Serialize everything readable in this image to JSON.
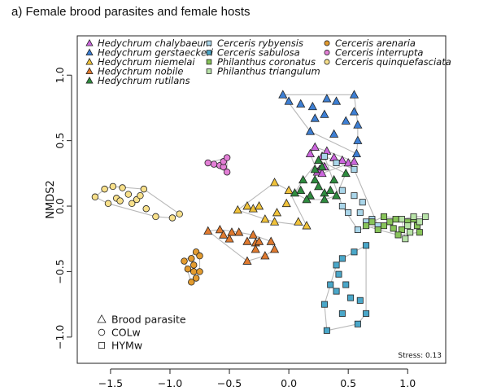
{
  "title": "a) Female brood parasites and female hosts",
  "chart_data": {
    "type": "scatter",
    "xlabel": "",
    "ylabel": "NMDS2",
    "xlim": [
      -1.78,
      1.32
    ],
    "ylim": [
      -1.2,
      1.3
    ],
    "xticks": [
      -1.5,
      -1.0,
      -0.5,
      0.0,
      0.5,
      1.0
    ],
    "xtick_labels": [
      "−1.5",
      "−1.0",
      "−0.5",
      "0.0",
      "0.5",
      "1.0"
    ],
    "yticks": [
      -1.0,
      -0.5,
      0.0,
      0.5,
      1.0
    ],
    "ytick_labels": [
      "−1.0",
      "−0.5",
      "0.0",
      "0.5",
      "1.0"
    ],
    "stress_label": "Stress: 0.13",
    "shape_legend": [
      {
        "shape": "triangle",
        "label": "Brood parasite"
      },
      {
        "shape": "circle",
        "label": "COLw"
      },
      {
        "shape": "square",
        "label": "HYMw"
      }
    ],
    "series": [
      {
        "name": "Hedychrum chalybaeum",
        "shape": "triangle",
        "color": "#cc66dd",
        "points": [
          [
            0.18,
            0.4
          ],
          [
            0.22,
            0.45
          ],
          [
            0.28,
            0.38
          ],
          [
            0.32,
            0.42
          ],
          [
            0.38,
            0.37
          ],
          [
            0.45,
            0.35
          ],
          [
            0.5,
            0.33
          ],
          [
            0.55,
            0.34
          ],
          [
            0.24,
            0.26
          ],
          [
            0.26,
            0.28
          ],
          [
            0.28,
            0.25
          ],
          [
            0.3,
            0.3
          ]
        ]
      },
      {
        "name": "Hedychrum gerstaeckeri",
        "shape": "triangle",
        "color": "#3d7fd4",
        "points": [
          [
            -0.05,
            0.85
          ],
          [
            0.0,
            0.8
          ],
          [
            0.1,
            0.78
          ],
          [
            0.2,
            0.76
          ],
          [
            0.32,
            0.82
          ],
          [
            0.4,
            0.8
          ],
          [
            0.55,
            0.72
          ],
          [
            0.55,
            0.85
          ],
          [
            0.22,
            0.67
          ],
          [
            0.3,
            0.7
          ],
          [
            0.48,
            0.65
          ],
          [
            0.58,
            0.62
          ],
          [
            0.18,
            0.57
          ],
          [
            0.38,
            0.55
          ],
          [
            0.58,
            0.5
          ],
          [
            0.57,
            0.4
          ]
        ]
      },
      {
        "name": "Hedychrum niemelai",
        "shape": "triangle",
        "color": "#f0c23a",
        "points": [
          [
            -0.43,
            -0.03
          ],
          [
            -0.35,
            0.0
          ],
          [
            -0.3,
            -0.02
          ],
          [
            -0.25,
            0.0
          ],
          [
            -0.1,
            -0.05
          ],
          [
            -0.12,
            -0.12
          ],
          [
            -0.02,
            0.02
          ],
          [
            -0.12,
            0.18
          ],
          [
            0.0,
            0.12
          ],
          [
            0.08,
            -0.12
          ],
          [
            0.15,
            -0.15
          ],
          [
            -0.2,
            -0.1
          ]
        ]
      },
      {
        "name": "Hedychrum nobile",
        "shape": "triangle",
        "color": "#e07a2f",
        "points": [
          [
            -0.68,
            -0.19
          ],
          [
            -0.58,
            -0.18
          ],
          [
            -0.55,
            -0.22
          ],
          [
            -0.5,
            -0.25
          ],
          [
            -0.48,
            -0.2
          ],
          [
            -0.42,
            -0.2
          ],
          [
            -0.35,
            -0.27
          ],
          [
            -0.3,
            -0.22
          ],
          [
            -0.28,
            -0.28
          ],
          [
            -0.28,
            -0.33
          ],
          [
            -0.25,
            -0.27
          ],
          [
            -0.15,
            -0.27
          ],
          [
            -0.12,
            -0.33
          ],
          [
            -0.2,
            -0.38
          ],
          [
            -0.35,
            -0.42
          ]
        ]
      },
      {
        "name": "Hedychrum rutilans",
        "shape": "triangle",
        "color": "#2e8b3e",
        "points": [
          [
            0.1,
            0.12
          ],
          [
            0.18,
            0.08
          ],
          [
            0.25,
            0.15
          ],
          [
            0.3,
            0.1
          ],
          [
            0.35,
            0.12
          ],
          [
            0.4,
            0.08
          ],
          [
            0.05,
            0.1
          ],
          [
            0.12,
            0.2
          ],
          [
            0.22,
            0.2
          ],
          [
            0.38,
            0.2
          ],
          [
            0.48,
            0.25
          ],
          [
            0.22,
            0.28
          ],
          [
            0.25,
            0.35
          ],
          [
            0.28,
            0.3
          ],
          [
            0.15,
            0.05
          ],
          [
            0.3,
            0.05
          ]
        ]
      },
      {
        "name": "Cerceris rybyensis",
        "shape": "square",
        "color": "#aad6ea",
        "points": [
          [
            0.3,
            0.38
          ],
          [
            0.4,
            0.33
          ],
          [
            0.55,
            0.28
          ],
          [
            0.45,
            0.12
          ],
          [
            0.55,
            0.08
          ],
          [
            0.45,
            0.0
          ],
          [
            0.5,
            -0.05
          ],
          [
            0.6,
            -0.05
          ],
          [
            0.65,
            -0.12
          ],
          [
            0.7,
            -0.1
          ],
          [
            0.58,
            -0.18
          ],
          [
            0.75,
            -0.15
          ],
          [
            0.62,
            0.03
          ]
        ]
      },
      {
        "name": "Cerceris sabulosa",
        "shape": "square",
        "color": "#4aa7c9",
        "points": [
          [
            0.35,
            -0.6
          ],
          [
            0.4,
            -0.65
          ],
          [
            0.42,
            -0.52
          ],
          [
            0.48,
            -0.6
          ],
          [
            0.52,
            -0.7
          ],
          [
            0.6,
            -0.72
          ],
          [
            0.65,
            -0.82
          ],
          [
            0.45,
            -0.82
          ],
          [
            0.3,
            -0.75
          ],
          [
            0.58,
            -0.9
          ],
          [
            0.32,
            -0.95
          ],
          [
            0.45,
            -0.4
          ],
          [
            0.4,
            -0.45
          ],
          [
            0.55,
            -0.35
          ],
          [
            0.65,
            -0.3
          ]
        ]
      },
      {
        "name": "Philanthus coronatus",
        "shape": "square",
        "color": "#88c45a",
        "points": [
          [
            0.65,
            -0.15
          ],
          [
            0.7,
            -0.12
          ],
          [
            0.75,
            -0.18
          ],
          [
            0.8,
            -0.15
          ],
          [
            0.85,
            -0.12
          ],
          [
            0.9,
            -0.1
          ],
          [
            0.95,
            -0.18
          ],
          [
            1.0,
            -0.12
          ],
          [
            1.05,
            -0.1
          ],
          [
            1.08,
            -0.15
          ],
          [
            1.1,
            -0.2
          ],
          [
            0.92,
            -0.22
          ],
          [
            0.88,
            -0.17
          ],
          [
            0.8,
            -0.08
          ]
        ]
      },
      {
        "name": "Philanthus triangulum",
        "shape": "square",
        "color": "#b8e3a8",
        "points": [
          [
            0.95,
            -0.1
          ],
          [
            1.0,
            -0.15
          ],
          [
            1.02,
            -0.2
          ],
          [
            1.05,
            -0.08
          ],
          [
            1.1,
            -0.12
          ],
          [
            1.15,
            -0.08
          ],
          [
            0.98,
            -0.25
          ]
        ]
      },
      {
        "name": "Cerceris arenaria",
        "shape": "circle",
        "color": "#e39b2e",
        "points": [
          [
            -0.88,
            -0.42
          ],
          [
            -0.82,
            -0.4
          ],
          [
            -0.8,
            -0.45
          ],
          [
            -0.85,
            -0.48
          ],
          [
            -0.8,
            -0.5
          ],
          [
            -0.75,
            -0.5
          ],
          [
            -0.78,
            -0.55
          ],
          [
            -0.82,
            -0.58
          ],
          [
            -0.78,
            -0.35
          ],
          [
            -0.75,
            -0.38
          ]
        ]
      },
      {
        "name": "Cerceris interrupta",
        "shape": "circle",
        "color": "#e37fd6",
        "points": [
          [
            -0.68,
            0.33
          ],
          [
            -0.63,
            0.32
          ],
          [
            -0.58,
            0.31
          ],
          [
            -0.55,
            0.3
          ],
          [
            -0.55,
            0.34
          ],
          [
            -0.52,
            0.37
          ],
          [
            -0.52,
            0.26
          ]
        ]
      },
      {
        "name": "Cerceris quinquefasciata",
        "shape": "circle",
        "color": "#f8e08a",
        "points": [
          [
            -1.63,
            0.07
          ],
          [
            -1.55,
            0.13
          ],
          [
            -1.48,
            0.15
          ],
          [
            -1.45,
            0.06
          ],
          [
            -1.42,
            0.04
          ],
          [
            -1.4,
            0.14
          ],
          [
            -1.35,
            0.09
          ],
          [
            -1.32,
            0.02
          ],
          [
            -1.28,
            0.05
          ],
          [
            -1.25,
            0.08
          ],
          [
            -1.22,
            0.13
          ],
          [
            -1.2,
            -0.02
          ],
          [
            -1.12,
            -0.08
          ],
          [
            -0.98,
            -0.09
          ],
          [
            -0.92,
            -0.06
          ],
          [
            -1.52,
            0.02
          ]
        ]
      }
    ]
  }
}
